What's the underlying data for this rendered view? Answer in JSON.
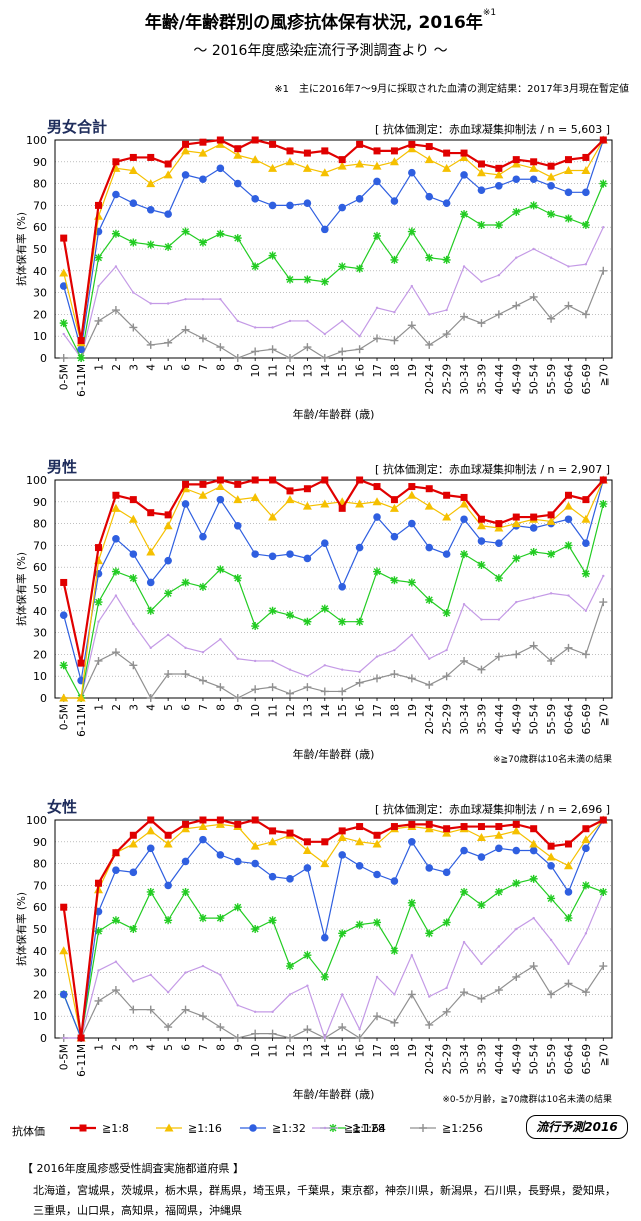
{
  "header": {
    "title": "年齢/年齢群別の風疹抗体保有状況, 2016年",
    "title_mark": "※1",
    "subtitle": "～ 2016年度感染症流行予測調査より ～",
    "footnote": "※1　主に2016年7～9月に採取された血清の測定結果：2017年3月現在暫定値"
  },
  "legend": {
    "label": "抗体価",
    "badge_text": "流行予測",
    "badge_year": "2016",
    "series": [
      {
        "name": "≧1:8",
        "color": "#e00000",
        "marker": "square"
      },
      {
        "name": "≧1:16",
        "color": "#f5c000",
        "marker": "triangle"
      },
      {
        "name": "≧1:32",
        "color": "#2f5fe0",
        "marker": "circle"
      },
      {
        "name": "≧1:64",
        "color": "#22cc22",
        "marker": "star"
      },
      {
        "name": "≧1:128",
        "color": "#c49ae6",
        "marker": "line"
      },
      {
        "name": "≧1:256",
        "color": "#909090",
        "marker": "plus"
      }
    ]
  },
  "prefectures": {
    "title": "【 2016年度風疹感受性調査実施都道府県 】",
    "line1": "北海道，宮城県，茨城県，栃木県，群馬県，埼玉県，千葉県，東京都，神奈川県，新潟県，石川県，長野県，愛知県，",
    "line2": "三重県，山口県，高知県，福岡県，沖縄県"
  },
  "chart_data": [
    {
      "type": "line",
      "title": "男女合計",
      "method_label": "[ 抗体価測定：赤血球凝集抑制法 / n = 5,603 ]",
      "ylabel": "抗体保有率 (%)",
      "xlabel": "年齢/年齢群 (歳)",
      "note": "",
      "ylim": [
        0,
        100
      ],
      "yticks": [
        0,
        10,
        20,
        30,
        40,
        50,
        60,
        70,
        80,
        90,
        100
      ],
      "categories": [
        "0-5M",
        "6-11M",
        "1",
        "2",
        "3",
        "4",
        "5",
        "6",
        "7",
        "8",
        "9",
        "10",
        "11",
        "12",
        "13",
        "14",
        "15",
        "16",
        "17",
        "18",
        "19",
        "20-24",
        "25-29",
        "30-34",
        "35-39",
        "40-44",
        "45-49",
        "50-54",
        "55-59",
        "60-64",
        "65-69",
        "≧70"
      ],
      "series": [
        {
          "name": "≧1:8",
          "values": [
            55,
            8,
            70,
            90,
            92,
            92,
            89,
            98,
            99,
            100,
            96,
            100,
            98,
            95,
            94,
            95,
            91,
            98,
            95,
            95,
            98,
            97,
            94,
            94,
            89,
            87,
            91,
            90,
            88,
            91,
            92,
            100
          ]
        },
        {
          "name": "≧1:16",
          "values": [
            39,
            7,
            65,
            87,
            86,
            80,
            84,
            95,
            94,
            98,
            93,
            91,
            87,
            90,
            87,
            85,
            88,
            89,
            88,
            90,
            96,
            91,
            87,
            92,
            85,
            84,
            89,
            87,
            83,
            86,
            86,
            100
          ]
        },
        {
          "name": "≧1:32",
          "values": [
            33,
            4,
            58,
            75,
            71,
            68,
            66,
            84,
            82,
            87,
            80,
            73,
            70,
            70,
            71,
            59,
            69,
            73,
            81,
            72,
            85,
            74,
            71,
            84,
            77,
            79,
            82,
            82,
            79,
            76,
            76,
            100
          ]
        },
        {
          "name": "≧1:64",
          "values": [
            16,
            0,
            46,
            57,
            53,
            52,
            51,
            58,
            53,
            57,
            55,
            42,
            47,
            36,
            36,
            35,
            42,
            41,
            56,
            45,
            58,
            46,
            45,
            66,
            61,
            61,
            67,
            70,
            66,
            64,
            61,
            80
          ]
        },
        {
          "name": "≧1:128",
          "values": [
            11,
            0,
            33,
            42,
            30,
            25,
            25,
            27,
            27,
            27,
            17,
            14,
            14,
            17,
            17,
            11,
            17,
            10,
            23,
            21,
            33,
            20,
            22,
            42,
            35,
            38,
            46,
            50,
            46,
            42,
            43,
            60
          ]
        },
        {
          "name": "≧1:256",
          "values": [
            0,
            0,
            17,
            22,
            14,
            6,
            7,
            13,
            9,
            5,
            0,
            3,
            4,
            0,
            5,
            0,
            3,
            4,
            9,
            8,
            15,
            6,
            11,
            19,
            16,
            20,
            24,
            28,
            18,
            24,
            20,
            40
          ]
        }
      ]
    },
    {
      "type": "line",
      "title": "男性",
      "method_label": "[ 抗体価測定：赤血球凝集抑制法 / n = 2,907 ]",
      "ylabel": "抗体保有率 (%)",
      "xlabel": "年齢/年齢群 (歳)",
      "note": "※≧70歳群は10名未満の結果",
      "ylim": [
        0,
        100
      ],
      "yticks": [
        0,
        10,
        20,
        30,
        40,
        50,
        60,
        70,
        80,
        90,
        100
      ],
      "categories": [
        "0-5M",
        "6-11M",
        "1",
        "2",
        "3",
        "4",
        "5",
        "6",
        "7",
        "8",
        "9",
        "10",
        "11",
        "12",
        "13",
        "14",
        "15",
        "16",
        "17",
        "18",
        "19",
        "20-24",
        "25-29",
        "30-34",
        "35-39",
        "40-44",
        "45-49",
        "50-54",
        "55-59",
        "60-64",
        "65-69",
        "≧70"
      ],
      "series": [
        {
          "name": "≧1:8",
          "values": [
            53,
            16,
            69,
            93,
            91,
            85,
            84,
            98,
            98,
            100,
            98,
            100,
            100,
            95,
            96,
            100,
            87,
            100,
            97,
            91,
            97,
            96,
            93,
            92,
            82,
            80,
            83,
            83,
            84,
            93,
            91,
            100
          ]
        },
        {
          "name": "≧1:16",
          "values": [
            0,
            0,
            63,
            87,
            82,
            67,
            79,
            96,
            93,
            97,
            91,
            92,
            83,
            91,
            88,
            89,
            90,
            89,
            90,
            87,
            93,
            88,
            83,
            89,
            79,
            78,
            80,
            82,
            81,
            88,
            82,
            100
          ]
        },
        {
          "name": "≧1:32",
          "values": [
            38,
            8,
            57,
            73,
            66,
            53,
            63,
            89,
            74,
            91,
            79,
            66,
            65,
            66,
            64,
            71,
            51,
            69,
            83,
            74,
            80,
            69,
            66,
            82,
            72,
            71,
            79,
            78,
            80,
            82,
            71,
            100
          ]
        },
        {
          "name": "≧1:64",
          "values": [
            15,
            0,
            44,
            58,
            55,
            40,
            48,
            53,
            51,
            59,
            55,
            33,
            40,
            38,
            35,
            41,
            35,
            35,
            58,
            54,
            53,
            45,
            39,
            66,
            61,
            55,
            64,
            67,
            66,
            70,
            57,
            89
          ]
        },
        {
          "name": "≧1:128",
          "values": [
            0,
            0,
            35,
            47,
            34,
            23,
            29,
            23,
            21,
            27,
            18,
            17,
            17,
            13,
            10,
            15,
            13,
            12,
            19,
            22,
            29,
            18,
            22,
            43,
            36,
            36,
            44,
            46,
            48,
            47,
            40,
            56
          ]
        },
        {
          "name": "≧1:256",
          "values": [
            0,
            0,
            17,
            21,
            15,
            0,
            11,
            11,
            8,
            5,
            0,
            4,
            5,
            2,
            5,
            3,
            3,
            7,
            9,
            11,
            9,
            6,
            10,
            17,
            13,
            19,
            20,
            24,
            17,
            23,
            20,
            44
          ]
        }
      ]
    },
    {
      "type": "line",
      "title": "女性",
      "method_label": "[ 抗体価測定：赤血球凝集抑制法 / n = 2,696 ]",
      "ylabel": "抗体保有率 (%)",
      "xlabel": "年齢/年齢群 (歳)",
      "note": "※0-5か月齢，≧70歳群は10名未満の結果",
      "ylim": [
        0,
        100
      ],
      "yticks": [
        0,
        10,
        20,
        30,
        40,
        50,
        60,
        70,
        80,
        90,
        100
      ],
      "categories": [
        "0-5M",
        "6-11M",
        "1",
        "2",
        "3",
        "4",
        "5",
        "6",
        "7",
        "8",
        "9",
        "10",
        "11",
        "12",
        "13",
        "14",
        "15",
        "16",
        "17",
        "18",
        "19",
        "20-24",
        "25-29",
        "30-34",
        "35-39",
        "40-44",
        "45-49",
        "50-54",
        "55-59",
        "60-64",
        "65-69",
        "≧70"
      ],
      "series": [
        {
          "name": "≧1:8",
          "values": [
            60,
            0,
            71,
            85,
            93,
            100,
            93,
            98,
            100,
            100,
            98,
            100,
            95,
            94,
            90,
            90,
            95,
            97,
            93,
            97,
            98,
            98,
            96,
            97,
            97,
            97,
            98,
            96,
            88,
            89,
            96,
            100
          ]
        },
        {
          "name": "≧1:16",
          "values": [
            40,
            0,
            68,
            85,
            89,
            95,
            89,
            96,
            97,
            98,
            97,
            88,
            90,
            93,
            86,
            80,
            92,
            90,
            89,
            96,
            97,
            96,
            94,
            96,
            92,
            93,
            95,
            89,
            83,
            79,
            91,
            100
          ]
        },
        {
          "name": "≧1:32",
          "values": [
            20,
            0,
            58,
            77,
            76,
            87,
            70,
            81,
            91,
            84,
            81,
            80,
            74,
            73,
            78,
            46,
            84,
            79,
            75,
            72,
            90,
            78,
            76,
            86,
            83,
            87,
            86,
            86,
            79,
            67,
            87,
            100
          ]
        },
        {
          "name": "≧1:64",
          "values": [
            20,
            0,
            49,
            54,
            50,
            67,
            54,
            67,
            55,
            55,
            60,
            50,
            54,
            33,
            38,
            28,
            48,
            52,
            53,
            40,
            62,
            48,
            53,
            67,
            61,
            67,
            71,
            73,
            64,
            55,
            70,
            67
          ]
        },
        {
          "name": "≧1:128",
          "values": [
            0,
            0,
            31,
            35,
            26,
            29,
            21,
            30,
            33,
            29,
            15,
            12,
            12,
            20,
            24,
            0,
            20,
            4,
            28,
            20,
            38,
            19,
            23,
            44,
            34,
            42,
            50,
            55,
            45,
            34,
            48,
            67
          ]
        },
        {
          "name": "≧1:256",
          "values": [
            0,
            0,
            17,
            22,
            13,
            13,
            5,
            13,
            10,
            5,
            0,
            2,
            2,
            0,
            4,
            0,
            5,
            0,
            10,
            7,
            20,
            6,
            12,
            21,
            18,
            22,
            28,
            33,
            20,
            25,
            21,
            33
          ]
        }
      ]
    }
  ]
}
